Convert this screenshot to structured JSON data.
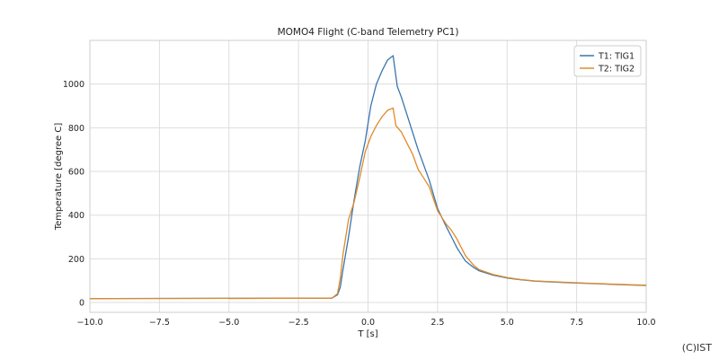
{
  "chart_data": {
    "type": "line",
    "title": "MOMO4 Flight (C-band Telemetry PC1)",
    "xlabel": "T [s]",
    "ylabel": "Temperature [degree C]",
    "xlim": [
      -10,
      10
    ],
    "ylim": [
      -45,
      1200
    ],
    "xticks": [
      -10,
      -7.5,
      -5,
      -2.5,
      0,
      2.5,
      5,
      7.5,
      10
    ],
    "xtick_labels": [
      "−10.0",
      "−7.5",
      "−5.0",
      "−2.5",
      "0.0",
      "2.5",
      "5.0",
      "7.5",
      "10.0"
    ],
    "yticks": [
      0,
      200,
      400,
      600,
      800,
      1000
    ],
    "ytick_labels": [
      "0",
      "200",
      "400",
      "600",
      "800",
      "1000"
    ],
    "grid": true,
    "legend_position": "top-right",
    "series": [
      {
        "name": "T1: TIG1",
        "color": "#3a75ae",
        "x": [
          -10,
          -1.3,
          -1.1,
          -1.0,
          -0.9,
          -0.7,
          -0.5,
          -0.3,
          -0.1,
          0.1,
          0.3,
          0.5,
          0.7,
          0.9,
          1.05,
          1.2,
          1.4,
          1.6,
          1.8,
          2.0,
          2.2,
          2.5,
          2.8,
          3.0,
          3.2,
          3.5,
          3.8,
          4.0,
          4.5,
          5.0,
          5.5,
          6.0,
          7.0,
          8.0,
          9.0,
          10.0
        ],
        "y": [
          18,
          20,
          35,
          70,
          150,
          300,
          470,
          620,
          740,
          900,
          1000,
          1060,
          1110,
          1130,
          990,
          940,
          860,
          780,
          700,
          630,
          560,
          430,
          350,
          300,
          250,
          190,
          160,
          145,
          125,
          112,
          104,
          98,
          92,
          87,
          82,
          78
        ]
      },
      {
        "name": "T2: TIG2",
        "color": "#e08a2b",
        "x": [
          -10,
          -1.3,
          -1.1,
          -1.0,
          -0.9,
          -0.7,
          -0.5,
          -0.3,
          -0.1,
          0.1,
          0.3,
          0.5,
          0.7,
          0.9,
          1.0,
          1.2,
          1.4,
          1.6,
          1.8,
          2.0,
          2.2,
          2.5,
          2.8,
          3.0,
          3.2,
          3.5,
          3.8,
          4.0,
          4.5,
          5.0,
          5.5,
          6.0,
          7.0,
          8.0,
          9.0,
          10.0
        ],
        "y": [
          18,
          20,
          40,
          110,
          220,
          380,
          460,
          570,
          690,
          760,
          810,
          850,
          880,
          890,
          810,
          780,
          730,
          680,
          610,
          570,
          530,
          420,
          360,
          330,
          290,
          215,
          170,
          150,
          128,
          114,
          105,
          99,
          93,
          88,
          83,
          79
        ]
      }
    ]
  },
  "watermark": "(C)IST"
}
